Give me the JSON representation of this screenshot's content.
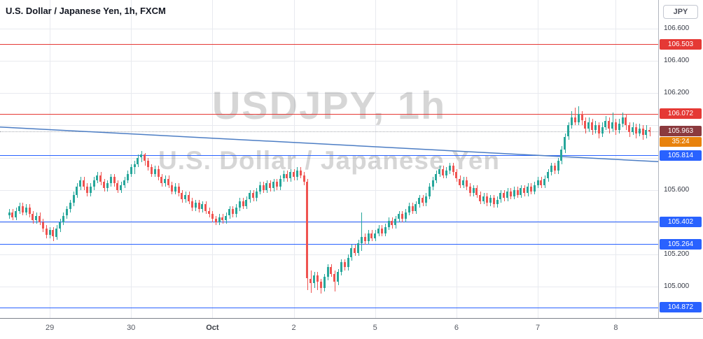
{
  "header": {
    "symbol_title": "U.S. Dollar / Japanese Yen, 1h, FXCM",
    "currency_button": "JPY"
  },
  "watermark": {
    "line1": "USDJPY, 1h",
    "line2": "U.S. Dollar / Japanese Yen"
  },
  "colors": {
    "up": "#26a69a",
    "down": "#ef5350",
    "grid": "#e8eaef",
    "resistance": "#e53935",
    "support": "#2962ff",
    "trendline": "#4c7dc4",
    "last_price_label": "#8b3a3e",
    "countdown_label": "#e8820c",
    "price_line": "#a6a9b0",
    "axis_text": "#363a45",
    "time_text": "#555962",
    "watermark": "rgba(0,0,0,0.16)"
  },
  "chart_data": {
    "type": "candlestick",
    "symbol": "USDJPY",
    "interval": "1h",
    "exchange": "FXCM",
    "title": "U.S. Dollar / Japanese Yen, 1h, FXCM",
    "price_min": 104.805,
    "price_max": 106.778,
    "price_axis_ticks": [
      "106.600",
      "106.400",
      "106.200",
      "105.600",
      "105.200",
      "105.000"
    ],
    "gridline_prices": [
      106.6,
      106.4,
      106.2,
      106.0,
      105.8,
      105.6,
      105.4,
      105.2,
      105.0
    ],
    "time_axis": [
      {
        "label": "29",
        "index": 12,
        "emphasis": false
      },
      {
        "label": "30",
        "index": 36,
        "emphasis": false
      },
      {
        "label": "Oct",
        "index": 60,
        "emphasis": true
      },
      {
        "label": "2",
        "index": 84,
        "emphasis": false
      },
      {
        "label": "5",
        "index": 108,
        "emphasis": false
      },
      {
        "label": "6",
        "index": 132,
        "emphasis": false
      },
      {
        "label": "7",
        "index": 156,
        "emphasis": false
      },
      {
        "label": "8",
        "index": 179,
        "emphasis": false
      }
    ],
    "levels": [
      {
        "price": 106.503,
        "label": "106.503",
        "type": "resistance"
      },
      {
        "price": 106.072,
        "label": "106.072",
        "type": "resistance"
      },
      {
        "price": 105.814,
        "label": "105.814",
        "type": "support"
      },
      {
        "price": 105.402,
        "label": "105.402",
        "type": "support"
      },
      {
        "price": 105.264,
        "label": "105.264",
        "type": "support"
      },
      {
        "price": 104.872,
        "label": "104.872",
        "type": "support"
      }
    ],
    "trendline": {
      "price_start": 105.99,
      "price_end": 105.775
    },
    "last_price": {
      "label": "105.963",
      "price": 105.963,
      "countdown": "35:24"
    },
    "candles": [
      [
        105.44,
        105.48,
        105.42,
        105.46
      ],
      [
        105.46,
        105.48,
        105.41,
        105.43
      ],
      [
        105.43,
        105.49,
        105.41,
        105.47
      ],
      [
        105.47,
        105.52,
        105.45,
        105.5
      ],
      [
        105.5,
        105.52,
        105.44,
        105.46
      ],
      [
        105.46,
        105.51,
        105.44,
        105.49
      ],
      [
        105.49,
        105.51,
        105.43,
        105.45
      ],
      [
        105.45,
        105.47,
        105.39,
        105.41
      ],
      [
        105.41,
        105.46,
        105.39,
        105.44
      ],
      [
        105.44,
        105.46,
        105.38,
        105.4
      ],
      [
        105.4,
        105.42,
        105.34,
        105.36
      ],
      [
        105.36,
        105.38,
        105.3,
        105.32
      ],
      [
        105.32,
        105.37,
        105.3,
        105.35
      ],
      [
        105.35,
        105.37,
        105.28,
        105.31
      ],
      [
        105.31,
        105.38,
        105.29,
        105.36
      ],
      [
        105.36,
        105.42,
        105.34,
        105.4
      ],
      [
        105.4,
        105.46,
        105.38,
        105.44
      ],
      [
        105.44,
        105.5,
        105.42,
        105.48
      ],
      [
        105.48,
        105.54,
        105.46,
        105.52
      ],
      [
        105.52,
        105.59,
        105.5,
        105.57
      ],
      [
        105.57,
        105.64,
        105.55,
        105.62
      ],
      [
        105.62,
        105.68,
        105.6,
        105.66
      ],
      [
        105.66,
        105.68,
        105.6,
        105.62
      ],
      [
        105.62,
        105.64,
        105.56,
        105.58
      ],
      [
        105.58,
        105.64,
        105.56,
        105.62
      ],
      [
        105.62,
        105.68,
        105.6,
        105.66
      ],
      [
        105.66,
        105.71,
        105.64,
        105.69
      ],
      [
        105.69,
        105.71,
        105.63,
        105.65
      ],
      [
        105.65,
        105.67,
        105.59,
        105.61
      ],
      [
        105.61,
        105.66,
        105.59,
        105.64
      ],
      [
        105.64,
        105.7,
        105.62,
        105.68
      ],
      [
        105.68,
        105.7,
        105.62,
        105.64
      ],
      [
        105.64,
        105.66,
        105.58,
        105.6
      ],
      [
        105.6,
        105.65,
        105.58,
        105.63
      ],
      [
        105.63,
        105.68,
        105.61,
        105.66
      ],
      [
        105.66,
        105.72,
        105.64,
        105.7
      ],
      [
        105.7,
        105.76,
        105.68,
        105.74
      ],
      [
        105.74,
        105.78,
        105.7,
        105.76
      ],
      [
        105.76,
        105.82,
        105.74,
        105.8
      ],
      [
        105.8,
        105.84,
        105.77,
        105.82
      ],
      [
        105.82,
        105.83,
        105.75,
        105.78
      ],
      [
        105.78,
        105.8,
        105.72,
        105.74
      ],
      [
        105.74,
        105.76,
        105.68,
        105.7
      ],
      [
        105.7,
        105.75,
        105.68,
        105.73
      ],
      [
        105.73,
        105.75,
        105.66,
        105.68
      ],
      [
        105.68,
        105.7,
        105.62,
        105.64
      ],
      [
        105.64,
        105.69,
        105.62,
        105.67
      ],
      [
        105.67,
        105.69,
        105.61,
        105.63
      ],
      [
        105.63,
        105.65,
        105.57,
        105.59
      ],
      [
        105.59,
        105.64,
        105.57,
        105.62
      ],
      [
        105.62,
        105.64,
        105.56,
        105.58
      ],
      [
        105.58,
        105.6,
        105.52,
        105.54
      ],
      [
        105.54,
        105.59,
        105.52,
        105.57
      ],
      [
        105.57,
        105.59,
        105.51,
        105.53
      ],
      [
        105.53,
        105.55,
        105.47,
        105.49
      ],
      [
        105.49,
        105.54,
        105.47,
        105.52
      ],
      [
        105.52,
        105.54,
        105.46,
        105.48
      ],
      [
        105.48,
        105.53,
        105.46,
        105.51
      ],
      [
        105.51,
        105.53,
        105.45,
        105.47
      ],
      [
        105.47,
        105.49,
        105.43,
        105.45
      ],
      [
        105.45,
        105.47,
        105.4,
        105.42
      ],
      [
        105.42,
        105.44,
        105.38,
        105.4
      ],
      [
        105.4,
        105.45,
        105.38,
        105.43
      ],
      [
        105.43,
        105.45,
        105.39,
        105.41
      ],
      [
        105.41,
        105.46,
        105.39,
        105.44
      ],
      [
        105.44,
        105.5,
        105.42,
        105.48
      ],
      [
        105.48,
        105.5,
        105.43,
        105.45
      ],
      [
        105.45,
        105.51,
        105.43,
        105.49
      ],
      [
        105.49,
        105.55,
        105.47,
        105.53
      ],
      [
        105.53,
        105.55,
        105.48,
        105.5
      ],
      [
        105.5,
        105.56,
        105.48,
        105.54
      ],
      [
        105.54,
        105.6,
        105.52,
        105.58
      ],
      [
        105.58,
        105.6,
        105.53,
        105.55
      ],
      [
        105.55,
        105.61,
        105.53,
        105.59
      ],
      [
        105.59,
        105.65,
        105.57,
        105.63
      ],
      [
        105.63,
        105.65,
        105.58,
        105.6
      ],
      [
        105.6,
        105.66,
        105.58,
        105.64
      ],
      [
        105.64,
        105.66,
        105.59,
        105.61
      ],
      [
        105.61,
        105.67,
        105.59,
        105.65
      ],
      [
        105.65,
        105.67,
        105.6,
        105.62
      ],
      [
        105.62,
        105.69,
        105.6,
        105.67
      ],
      [
        105.67,
        105.72,
        105.65,
        105.7
      ],
      [
        105.7,
        105.72,
        105.65,
        105.67
      ],
      [
        105.67,
        105.73,
        105.65,
        105.71
      ],
      [
        105.71,
        105.73,
        105.66,
        105.68
      ],
      [
        105.68,
        105.74,
        105.66,
        105.72
      ],
      [
        105.72,
        105.74,
        105.67,
        105.69
      ],
      [
        105.69,
        105.71,
        105.63,
        105.65
      ],
      [
        105.65,
        105.67,
        104.98,
        105.05
      ],
      [
        105.05,
        105.1,
        104.96,
        105.02
      ],
      [
        105.02,
        105.09,
        104.99,
        105.07
      ],
      [
        105.07,
        105.09,
        104.98,
        105.03
      ],
      [
        105.03,
        105.05,
        104.955,
        104.99
      ],
      [
        104.99,
        105.08,
        104.97,
        105.06
      ],
      [
        105.06,
        105.14,
        105.04,
        105.12
      ],
      [
        105.12,
        105.14,
        105.06,
        105.08
      ],
      [
        105.08,
        105.1,
        104.97,
        105.03
      ],
      [
        105.03,
        105.11,
        105.01,
        105.09
      ],
      [
        105.09,
        105.17,
        105.07,
        105.15
      ],
      [
        105.15,
        105.17,
        105.1,
        105.12
      ],
      [
        105.12,
        105.2,
        105.1,
        105.18
      ],
      [
        105.18,
        105.26,
        105.16,
        105.24
      ],
      [
        105.24,
        105.26,
        105.19,
        105.21
      ],
      [
        105.21,
        105.29,
        105.19,
        105.27
      ],
      [
        105.27,
        105.46,
        105.22,
        105.31
      ],
      [
        105.31,
        105.33,
        105.26,
        105.28
      ],
      [
        105.28,
        105.35,
        105.26,
        105.33
      ],
      [
        105.33,
        105.35,
        105.28,
        105.3
      ],
      [
        105.3,
        105.35,
        105.28,
        105.33
      ],
      [
        105.33,
        105.38,
        105.31,
        105.36
      ],
      [
        105.36,
        105.38,
        105.31,
        105.33
      ],
      [
        105.33,
        105.39,
        105.31,
        105.37
      ],
      [
        105.37,
        105.43,
        105.35,
        105.41
      ],
      [
        105.41,
        105.43,
        105.36,
        105.38
      ],
      [
        105.38,
        105.44,
        105.36,
        105.42
      ],
      [
        105.42,
        105.47,
        105.4,
        105.45
      ],
      [
        105.45,
        105.47,
        105.4,
        105.42
      ],
      [
        105.42,
        105.48,
        105.4,
        105.46
      ],
      [
        105.46,
        105.52,
        105.44,
        105.5
      ],
      [
        105.5,
        105.52,
        105.45,
        105.47
      ],
      [
        105.47,
        105.53,
        105.45,
        105.51
      ],
      [
        105.51,
        105.57,
        105.49,
        105.55
      ],
      [
        105.55,
        105.57,
        105.5,
        105.52
      ],
      [
        105.52,
        105.58,
        105.5,
        105.56
      ],
      [
        105.56,
        105.64,
        105.54,
        105.62
      ],
      [
        105.62,
        105.68,
        105.6,
        105.66
      ],
      [
        105.66,
        105.72,
        105.64,
        105.7
      ],
      [
        105.7,
        105.75,
        105.68,
        105.73
      ],
      [
        105.73,
        105.75,
        105.67,
        105.69
      ],
      [
        105.69,
        105.74,
        105.67,
        105.72
      ],
      [
        105.72,
        105.77,
        105.7,
        105.75
      ],
      [
        105.75,
        105.77,
        105.69,
        105.71
      ],
      [
        105.71,
        105.73,
        105.65,
        105.67
      ],
      [
        105.67,
        105.69,
        105.61,
        105.63
      ],
      [
        105.63,
        105.68,
        105.61,
        105.66
      ],
      [
        105.66,
        105.68,
        105.6,
        105.62
      ],
      [
        105.62,
        105.64,
        105.56,
        105.58
      ],
      [
        105.58,
        105.63,
        105.56,
        105.61
      ],
      [
        105.61,
        105.63,
        105.55,
        105.57
      ],
      [
        105.57,
        105.59,
        105.51,
        105.53
      ],
      [
        105.53,
        105.58,
        105.51,
        105.56
      ],
      [
        105.56,
        105.58,
        105.5,
        105.52
      ],
      [
        105.52,
        105.57,
        105.5,
        105.55
      ],
      [
        105.55,
        105.57,
        105.49,
        105.51
      ],
      [
        105.51,
        105.56,
        105.49,
        105.54
      ],
      [
        105.54,
        105.6,
        105.52,
        105.58
      ],
      [
        105.58,
        105.6,
        105.53,
        105.55
      ],
      [
        105.55,
        105.61,
        105.53,
        105.59
      ],
      [
        105.59,
        105.61,
        105.54,
        105.56
      ],
      [
        105.56,
        105.62,
        105.54,
        105.6
      ],
      [
        105.6,
        105.62,
        105.55,
        105.57
      ],
      [
        105.57,
        105.63,
        105.55,
        105.61
      ],
      [
        105.61,
        105.63,
        105.56,
        105.58
      ],
      [
        105.58,
        105.64,
        105.56,
        105.62
      ],
      [
        105.62,
        105.64,
        105.57,
        105.59
      ],
      [
        105.59,
        105.65,
        105.57,
        105.63
      ],
      [
        105.63,
        105.68,
        105.61,
        105.66
      ],
      [
        105.66,
        105.68,
        105.61,
        105.63
      ],
      [
        105.63,
        105.69,
        105.61,
        105.67
      ],
      [
        105.67,
        105.73,
        105.65,
        105.71
      ],
      [
        105.71,
        105.77,
        105.69,
        105.75
      ],
      [
        105.75,
        105.77,
        105.7,
        105.72
      ],
      [
        105.72,
        105.8,
        105.7,
        105.78
      ],
      [
        105.78,
        105.87,
        105.76,
        105.85
      ],
      [
        105.85,
        105.95,
        105.83,
        105.93
      ],
      [
        105.93,
        106.02,
        105.91,
        106.0
      ],
      [
        106.0,
        106.09,
        105.98,
        106.05
      ],
      [
        106.05,
        106.11,
        106.0,
        106.02
      ],
      [
        106.02,
        106.12,
        106.0,
        106.07
      ],
      [
        106.07,
        106.09,
        106.0,
        106.03
      ],
      [
        106.03,
        106.05,
        105.95,
        105.98
      ],
      [
        105.98,
        106.05,
        105.96,
        106.02
      ],
      [
        106.02,
        106.04,
        105.94,
        105.97
      ],
      [
        105.97,
        106.03,
        105.95,
        106.0
      ],
      [
        106.0,
        106.02,
        105.92,
        105.95
      ],
      [
        105.95,
        106.02,
        105.93,
        105.99
      ],
      [
        105.99,
        106.06,
        105.97,
        106.03
      ],
      [
        106.03,
        106.05,
        105.95,
        105.98
      ],
      [
        105.98,
        106.08,
        105.96,
        106.02
      ],
      [
        106.02,
        106.04,
        105.94,
        105.97
      ],
      [
        105.97,
        106.04,
        105.95,
        106.01
      ],
      [
        106.01,
        106.08,
        105.99,
        106.05
      ],
      [
        106.05,
        106.07,
        105.97,
        106.0
      ],
      [
        106.0,
        106.02,
        105.93,
        105.96
      ],
      [
        105.96,
        106.02,
        105.94,
        105.99
      ],
      [
        105.99,
        106.01,
        105.92,
        105.95
      ],
      [
        105.95,
        106.01,
        105.93,
        105.98
      ],
      [
        105.98,
        106.0,
        105.91,
        105.94
      ],
      [
        105.94,
        106.0,
        105.92,
        105.97
      ],
      [
        105.97,
        105.99,
        105.93,
        105.963
      ]
    ]
  }
}
